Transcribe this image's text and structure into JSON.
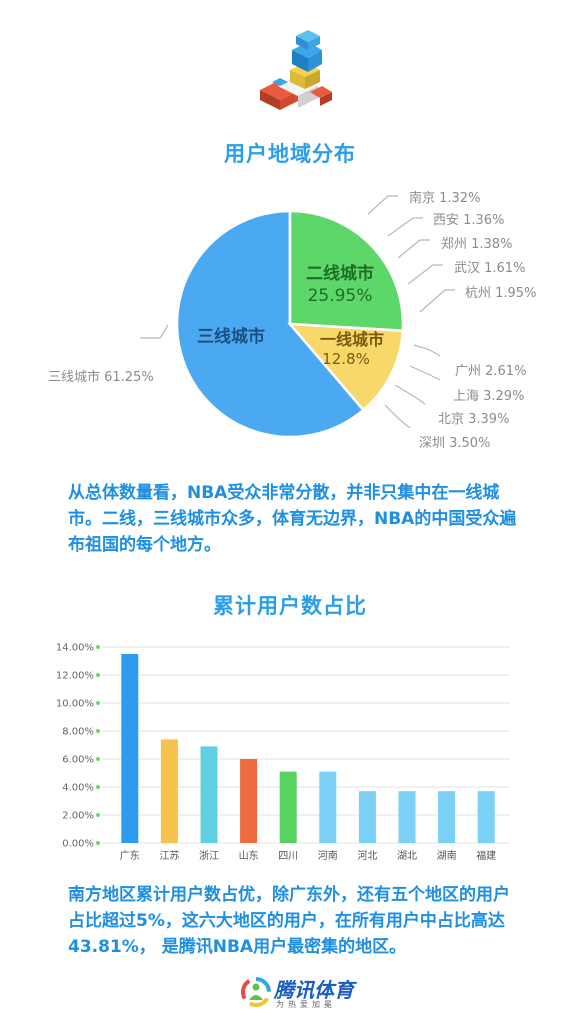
{
  "pie_section": {
    "title": "用户地域分布",
    "labels": {
      "tier2": "二线城市",
      "tier2_pct": "25.95%",
      "tier1": "一线城市",
      "tier1_pct": "12.8%",
      "tier3": "三线城市"
    },
    "left_label": "三线城市  61.25%",
    "right_labels": [
      "南京  1.32%",
      "西安  1.36%",
      "郑州  1.38%",
      "武汉  1.61%",
      "杭州  1.95%",
      "广州  2.61%",
      "上海  3.29%",
      "北京  3.39%",
      "深圳  3.50%"
    ],
    "paragraph": "从总体数量看，NBA受众非常分散，并非只集中在一线城市。二线，三线城市众多，体育无边界，NBA的中国受众遍布祖国的每个地方。"
  },
  "bar_section": {
    "title": "累计用户数占比",
    "paragraph": "南方地区累计用户数占优，除广东外，还有五个地区的用户占比超过5%，这六大地区的用户，在所有用户中占比高达43.81%， 是腾讯NBA用户最密集的地区。"
  },
  "footer": {
    "brand": "腾讯体育",
    "slogan": "为热爱加冕"
  },
  "colors": {
    "accent": "#2a9ee8",
    "tier3": "#4aa9f1",
    "tier2": "#5dd66a",
    "tier1": "#f7d86a"
  },
  "chart_data": [
    {
      "type": "pie",
      "slices": [
        {
          "label": "三线城市",
          "value": 61.25
        },
        {
          "label": "二线城市",
          "value": 25.95
        },
        {
          "label": "一线城市",
          "value": 12.8
        }
      ]
    },
    {
      "type": "bar",
      "categories": [
        "广东",
        "江苏",
        "浙江",
        "山东",
        "四川",
        "河南",
        "河北",
        "湖北",
        "湖南",
        "福建"
      ],
      "values": [
        13.5,
        7.4,
        6.9,
        6.0,
        5.1,
        5.1,
        3.7,
        3.7,
        3.7,
        3.7
      ],
      "colors": [
        "#2d9cf0",
        "#f7c24b",
        "#5fd0e0",
        "#ee6b3f",
        "#59d360",
        "#7ad0f5",
        "#7ad0f5",
        "#7ad0f5",
        "#7ad0f5",
        "#7ad0f5"
      ],
      "ylim": [
        0,
        14
      ],
      "yticks": [
        "0.00%",
        "2.00%",
        "4.00%",
        "6.00%",
        "8.00%",
        "10.00%",
        "12.00%",
        "14.00%"
      ],
      "grid": true
    }
  ]
}
